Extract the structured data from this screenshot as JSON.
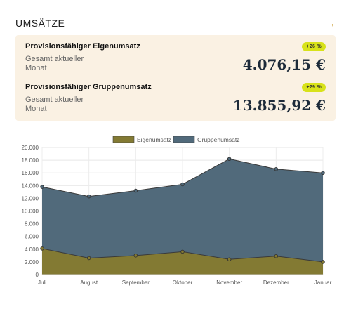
{
  "header": {
    "title": "UMSÄTZE",
    "arrow": "→"
  },
  "summary": [
    {
      "label": "Provisionsfähiger Eigenumsatz",
      "badge": "+26 %",
      "sublabel": "Gesamt aktueller Monat",
      "amount": "4.076,15 €"
    },
    {
      "label": "Provisionsfähiger Gruppenumsatz",
      "badge": "+29 %",
      "sublabel": "Gesamt aktueller Monat",
      "amount": "13.855,92 €"
    }
  ],
  "colors": {
    "eigen": "#837a33",
    "gruppe": "#516a7b",
    "badge": "#d8e21a",
    "card": "#faf1e3",
    "accent": "#c99a2e"
  },
  "chart_data": {
    "type": "area",
    "categories": [
      "Juli",
      "August",
      "September",
      "Oktober",
      "November",
      "Dezember",
      "Januar"
    ],
    "series": [
      {
        "name": "Eigenumsatz",
        "values": [
          4100,
          2600,
          3000,
          3600,
          2400,
          2900,
          2000
        ]
      },
      {
        "name": "Gruppenumsatz",
        "values": [
          13800,
          12300,
          13200,
          14200,
          18200,
          16600,
          16000
        ]
      }
    ],
    "ylim": [
      0,
      20000
    ],
    "yticks": [
      "0",
      "2.000",
      "4.000",
      "6.000",
      "8.000",
      "10.000",
      "12.000",
      "14.000",
      "16.000",
      "18.000",
      "20.000"
    ],
    "legend": "top",
    "grid": true
  }
}
